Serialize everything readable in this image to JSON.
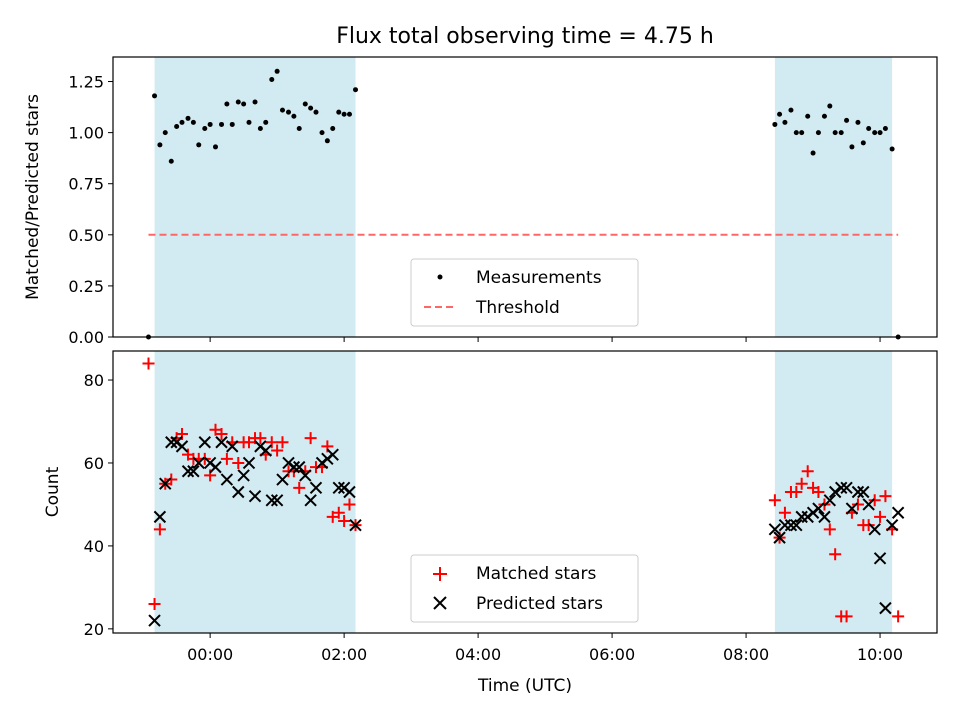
{
  "title": "Flux total observing time = 4.75 h",
  "colors": {
    "shade": "#add8e6",
    "threshold": "#ff6666",
    "matched": "#ff0000",
    "predicted": "#000000",
    "measure": "#000000"
  },
  "chart_data": [
    {
      "type": "scatter",
      "panel": "top",
      "ylabel": "Matched/Predicted stars",
      "xlim": [
        -1.45,
        10.85
      ],
      "ylim": [
        0.0,
        1.37
      ],
      "yticks": [
        0.0,
        0.25,
        0.5,
        0.75,
        1.0,
        1.25
      ],
      "ytick_labels": [
        "0.00",
        "0.25",
        "0.50",
        "0.75",
        "1.00",
        "1.25"
      ],
      "xticks": [
        0,
        2,
        4,
        6,
        8,
        10
      ],
      "shaded_spans": [
        [
          -0.83,
          2.17
        ],
        [
          8.43,
          10.18
        ]
      ],
      "threshold": 0.5,
      "legend": [
        "Measurements",
        "Threshold"
      ],
      "legend_position": "lower-center",
      "series": [
        {
          "name": "Measurements",
          "x": [
            -0.92,
            -0.83,
            -0.75,
            -0.67,
            -0.58,
            -0.5,
            -0.42,
            -0.33,
            -0.25,
            -0.17,
            -0.08,
            0.0,
            0.08,
            0.17,
            0.25,
            0.33,
            0.42,
            0.5,
            0.58,
            0.67,
            0.75,
            0.83,
            0.92,
            1.0,
            1.08,
            1.17,
            1.25,
            1.33,
            1.42,
            1.5,
            1.58,
            1.67,
            1.75,
            1.83,
            1.92,
            2.0,
            2.08,
            2.17,
            8.43,
            8.5,
            8.58,
            8.67,
            8.75,
            8.83,
            8.92,
            9.0,
            9.08,
            9.17,
            9.25,
            9.33,
            9.42,
            9.5,
            9.58,
            9.67,
            9.75,
            9.83,
            9.92,
            10.0,
            10.08,
            10.18,
            10.27
          ],
          "y": [
            0.0,
            1.18,
            0.94,
            1.0,
            0.86,
            1.03,
            1.05,
            1.07,
            1.05,
            0.94,
            1.02,
            1.04,
            0.93,
            1.04,
            1.14,
            1.04,
            1.15,
            1.14,
            1.05,
            1.15,
            1.02,
            1.05,
            1.26,
            1.3,
            1.11,
            1.1,
            1.08,
            1.02,
            1.14,
            1.12,
            1.1,
            1.0,
            0.96,
            1.02,
            1.1,
            1.09,
            1.09,
            1.21,
            1.04,
            1.09,
            1.05,
            1.11,
            1.0,
            1.0,
            1.08,
            0.9,
            1.0,
            1.08,
            1.13,
            1.0,
            1.0,
            1.06,
            0.93,
            1.05,
            0.95,
            1.02,
            1.0,
            1.0,
            1.02,
            0.92,
            0.0
          ]
        }
      ]
    },
    {
      "type": "scatter",
      "panel": "bottom",
      "xlabel": "Time (UTC)",
      "ylabel": "Count",
      "xlim": [
        -1.45,
        10.85
      ],
      "ylim": [
        19,
        87
      ],
      "yticks": [
        20,
        40,
        60,
        80
      ],
      "ytick_labels": [
        "20",
        "40",
        "60",
        "80"
      ],
      "xticks": [
        0,
        2,
        4,
        6,
        8,
        10
      ],
      "xtick_labels": [
        "00:00",
        "02:00",
        "04:00",
        "06:00",
        "08:00",
        "10:00"
      ],
      "shaded_spans": [
        [
          -0.83,
          2.17
        ],
        [
          8.43,
          10.18
        ]
      ],
      "legend": [
        "Matched stars",
        "Predicted stars"
      ],
      "legend_position": "lower-center",
      "series": [
        {
          "name": "Matched stars",
          "x": [
            -0.92,
            -0.83,
            -0.75,
            -0.67,
            -0.58,
            -0.5,
            -0.42,
            -0.33,
            -0.25,
            -0.17,
            -0.08,
            0.0,
            0.08,
            0.17,
            0.25,
            0.33,
            0.42,
            0.5,
            0.58,
            0.67,
            0.75,
            0.83,
            0.92,
            1.0,
            1.08,
            1.17,
            1.25,
            1.33,
            1.42,
            1.5,
            1.58,
            1.67,
            1.75,
            1.83,
            1.92,
            2.0,
            2.08,
            2.17,
            8.43,
            8.5,
            8.58,
            8.67,
            8.75,
            8.83,
            8.92,
            9.0,
            9.08,
            9.17,
            9.25,
            9.33,
            9.42,
            9.5,
            9.58,
            9.67,
            9.75,
            9.83,
            9.92,
            10.0,
            10.08,
            10.18,
            10.27
          ],
          "y": [
            84,
            26,
            44,
            55,
            56,
            66,
            67,
            62,
            61,
            61,
            61,
            57,
            68,
            67,
            61,
            65,
            60,
            65,
            65,
            66,
            66,
            62,
            65,
            63,
            65,
            58,
            58,
            54,
            58,
            66,
            59,
            59,
            64,
            47,
            48,
            46,
            50,
            45,
            51,
            42,
            48,
            53,
            53,
            55,
            58,
            54,
            53,
            50,
            44,
            38,
            23,
            23,
            48,
            50,
            45,
            45,
            51,
            47,
            52,
            44,
            23
          ]
        },
        {
          "name": "Predicted stars",
          "x": [
            -0.83,
            -0.75,
            -0.67,
            -0.58,
            -0.5,
            -0.42,
            -0.33,
            -0.25,
            -0.17,
            -0.08,
            0.0,
            0.08,
            0.17,
            0.25,
            0.33,
            0.42,
            0.5,
            0.58,
            0.67,
            0.75,
            0.83,
            0.92,
            1.0,
            1.08,
            1.17,
            1.25,
            1.33,
            1.42,
            1.5,
            1.58,
            1.67,
            1.75,
            1.83,
            1.92,
            2.0,
            2.08,
            2.17,
            8.43,
            8.5,
            8.58,
            8.67,
            8.75,
            8.83,
            8.92,
            9.0,
            9.08,
            9.17,
            9.25,
            9.33,
            9.42,
            9.5,
            9.58,
            9.67,
            9.75,
            9.83,
            9.92,
            10.0,
            10.08,
            10.18,
            10.27
          ],
          "y": [
            22,
            47,
            55,
            65,
            65,
            64,
            58,
            58,
            60,
            65,
            60,
            59,
            65,
            56,
            64,
            53,
            57,
            60,
            52,
            64,
            63,
            51,
            51,
            56,
            60,
            59,
            59,
            57,
            51,
            54,
            60,
            61,
            62,
            54,
            54,
            53,
            45,
            44,
            42,
            45,
            45,
            45,
            47,
            47,
            48,
            49,
            47,
            51,
            53,
            54,
            54,
            49,
            53,
            53,
            50,
            44,
            37,
            25,
            45,
            48
          ]
        }
      ]
    }
  ]
}
